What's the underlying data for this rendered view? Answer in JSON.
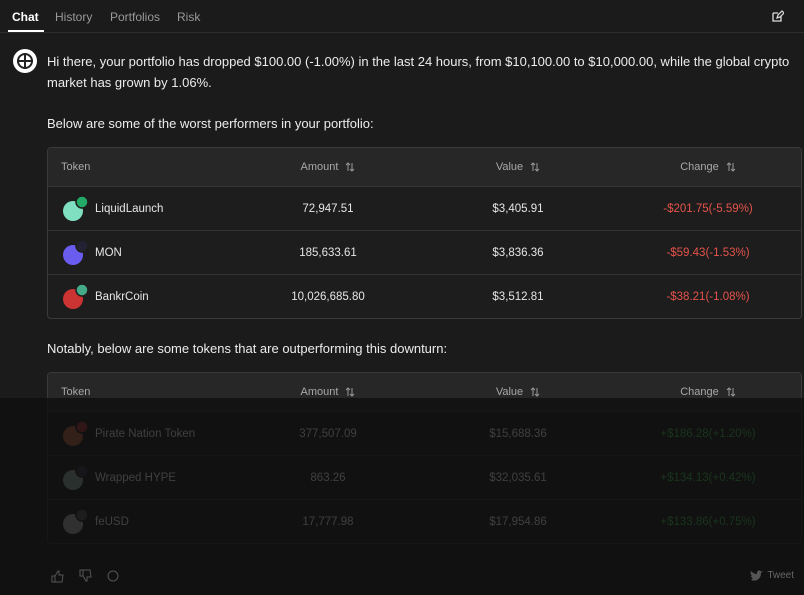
{
  "tabs": [
    "Chat",
    "History",
    "Portfolios",
    "Risk"
  ],
  "message": "Hi there, your portfolio has dropped $100.00 (-1.00%) in the last 24 hours, from $10,100.00 to $10,000.00, while the global crypto market has grown by 1.06%.",
  "intro_worst": "Below are some of the worst performers in your portfolio:",
  "worst_table": {
    "headers": [
      "Token",
      "Amount",
      "Value",
      "Change"
    ],
    "rows": [
      [
        "LiquidLaunch",
        "72,947.51",
        "$3,405.91",
        "-$201.75(-5.59%)"
      ],
      [
        "MON",
        "185,633.61",
        "$3,836.36",
        "-$59.43(-1.53%)"
      ],
      [
        "BankrCoin",
        "10,026,685.80",
        "$3,512.81",
        "-$38.21(-1.08%)"
      ]
    ]
  },
  "intro_best": "Notably, below are some tokens that are outperforming this downturn:",
  "best_table": {
    "headers": [
      "Token",
      "Amount",
      "Value",
      "Change"
    ],
    "rows": [
      [
        "Pirate Nation Token",
        "377,507.09",
        "$15,688.36",
        "+$186.28(+1.20%)"
      ],
      [
        "Wrapped HYPE",
        "863.26",
        "$32,035.61",
        "+$134.13(+0.42%)"
      ],
      [
        "feUSD",
        "17,777.98",
        "$17,954.86",
        "+$133.86(+0.75%)"
      ]
    ]
  },
  "tweet": "Tweet"
}
